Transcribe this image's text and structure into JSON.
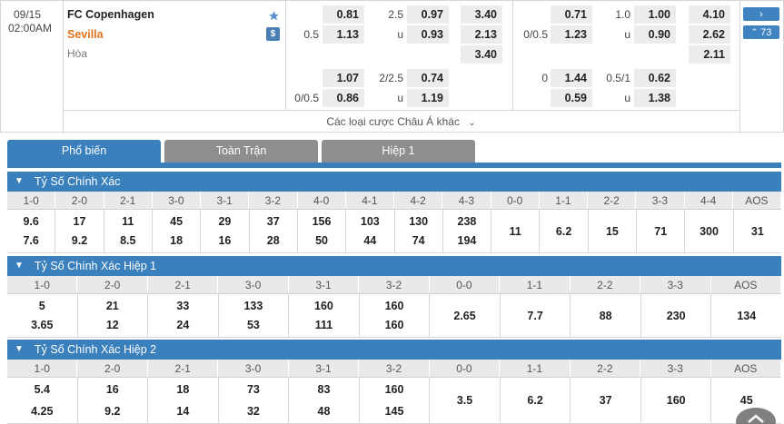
{
  "match": {
    "date": "09/15",
    "time": "02:00AM",
    "home": "FC Copenhagen",
    "away": "Sevilla",
    "draw_label": "Hòa",
    "more_label": "Các loại cược Châu Á khác",
    "markets_count": "73",
    "home_color": "#222222",
    "away_color": "#e0741e",
    "star_color": "#5b8fd0"
  },
  "odds": {
    "ft_ah1": {
      "hdp_home": "",
      "odd_home": "0.81",
      "hdp_away": "0.5",
      "odd_away": "1.13"
    },
    "ft_ou1": {
      "line": "2.5",
      "over": "0.97",
      "under_label": "u",
      "under": "0.93"
    },
    "ft_1x2": {
      "home": "3.40",
      "away": "2.13",
      "draw": "3.40"
    },
    "fh_ah1": {
      "hdp_home": "",
      "odd_home": "0.71",
      "hdp_away": "0/0.5",
      "odd_away": "1.23"
    },
    "fh_ou1": {
      "line": "1.0",
      "over": "1.00",
      "under_label": "u",
      "under": "0.90"
    },
    "fh_1x2": {
      "home": "4.10",
      "away": "2.62",
      "draw": "2.11"
    },
    "ft_ah2": {
      "hdp_home": "",
      "odd_home": "1.07",
      "hdp_away": "0/0.5",
      "odd_away": "0.86"
    },
    "ft_ou2": {
      "line": "2/2.5",
      "over": "0.74",
      "under_label": "u",
      "under": "1.19"
    },
    "fh_ah2": {
      "hdp_home": "0",
      "odd_home": "1.44",
      "hdp_away": "",
      "odd_away": "0.59"
    },
    "fh_ou2": {
      "line": "0.5/1",
      "over": "0.62",
      "under_label": "u",
      "under": "1.38"
    }
  },
  "tabs": [
    {
      "label": "Phổ biến",
      "active": true
    },
    {
      "label": "Toàn Trận",
      "active": false
    },
    {
      "label": "Hiệp 1",
      "active": false
    }
  ],
  "sections": [
    {
      "title": "Tỷ Số Chính Xác",
      "headers": [
        "1-0",
        "2-0",
        "2-1",
        "3-0",
        "3-1",
        "3-2",
        "4-0",
        "4-1",
        "4-2",
        "4-3",
        "0-0",
        "1-1",
        "2-2",
        "3-3",
        "4-4",
        "AOS"
      ],
      "home": [
        "9.6",
        "17",
        "11",
        "45",
        "29",
        "37",
        "156",
        "103",
        "130",
        "238"
      ],
      "away": [
        "7.6",
        "9.2",
        "8.5",
        "18",
        "16",
        "28",
        "50",
        "44",
        "74",
        "194"
      ],
      "draws": [
        "11",
        "6.2",
        "15",
        "71",
        "300",
        "31"
      ]
    },
    {
      "title": "Tỷ Số Chính Xác Hiệp 1",
      "headers": [
        "1-0",
        "2-0",
        "2-1",
        "3-0",
        "3-1",
        "3-2",
        "0-0",
        "1-1",
        "2-2",
        "3-3",
        "AOS"
      ],
      "home": [
        "5",
        "21",
        "33",
        "133",
        "160",
        "160"
      ],
      "away": [
        "3.65",
        "12",
        "24",
        "53",
        "111",
        "160"
      ],
      "draws": [
        "2.65",
        "7.7",
        "88",
        "230",
        "134"
      ]
    },
    {
      "title": "Tỷ Số Chính Xác Hiệp 2",
      "headers": [
        "1-0",
        "2-0",
        "2-1",
        "3-0",
        "3-1",
        "3-2",
        "0-0",
        "1-1",
        "2-2",
        "3-3",
        "AOS"
      ],
      "home": [
        "5.4",
        "16",
        "18",
        "73",
        "83",
        "160"
      ],
      "away": [
        "4.25",
        "9.2",
        "14",
        "32",
        "48",
        "145"
      ],
      "draws": [
        "3.5",
        "6.2",
        "37",
        "160",
        "45"
      ]
    }
  ]
}
